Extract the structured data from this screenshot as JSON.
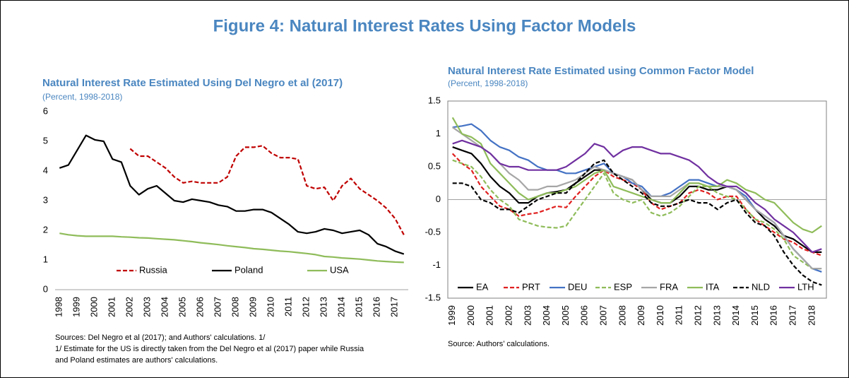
{
  "title": "Figure 4: Natural Interest Rates Using Factor Models",
  "chart_data": [
    {
      "type": "line",
      "title": "Natural Interest Rate Estimated Using Del Negro et al (2017)",
      "subtitle": "(Percent, 1998-2018)",
      "categories": [
        "1998",
        null,
        "1999",
        null,
        "2000",
        null,
        "2001",
        null,
        "2002",
        null,
        "2003",
        null,
        "2004",
        null,
        "2005",
        null,
        "2006",
        null,
        "2007",
        null,
        "2008",
        null,
        "2009",
        null,
        "2010",
        null,
        "2011",
        null,
        "2012",
        null,
        "2013",
        null,
        "2014",
        null,
        "2015",
        null,
        "2016",
        null,
        "2017",
        null
      ],
      "ylim": [
        0,
        6
      ],
      "yticks": [
        0,
        1,
        2,
        3,
        4,
        5,
        6
      ],
      "grid": false,
      "legend": "lower center",
      "series": [
        {
          "name": "Russia",
          "color": "#c00000",
          "dashed": true,
          "values": [
            null,
            null,
            null,
            null,
            null,
            null,
            null,
            null,
            4.75,
            4.5,
            4.5,
            4.3,
            4.1,
            3.8,
            3.6,
            3.65,
            3.6,
            3.6,
            3.6,
            3.8,
            4.5,
            4.8,
            4.8,
            4.85,
            4.6,
            4.45,
            4.45,
            4.4,
            3.5,
            3.4,
            3.45,
            3.0,
            3.5,
            3.75,
            3.4,
            3.2,
            3.0,
            2.75,
            2.4,
            1.85
          ]
        },
        {
          "name": "Poland",
          "color": "#000000",
          "dashed": false,
          "values": [
            4.1,
            4.2,
            4.7,
            5.2,
            5.05,
            5.0,
            4.4,
            4.3,
            3.5,
            3.2,
            3.4,
            3.5,
            3.25,
            3.0,
            2.95,
            3.05,
            3.0,
            2.95,
            2.85,
            2.8,
            2.65,
            2.65,
            2.7,
            2.7,
            2.6,
            2.4,
            2.2,
            1.95,
            1.9,
            1.95,
            2.05,
            2.0,
            1.9,
            1.95,
            2.0,
            1.85,
            1.55,
            1.45,
            1.3,
            1.2
          ]
        },
        {
          "name": "USA",
          "color": "#8fbc5a",
          "dashed": false,
          "values": [
            1.9,
            1.85,
            1.82,
            1.8,
            1.8,
            1.8,
            1.8,
            1.78,
            1.77,
            1.75,
            1.74,
            1.72,
            1.7,
            1.68,
            1.65,
            1.62,
            1.58,
            1.55,
            1.52,
            1.48,
            1.45,
            1.42,
            1.38,
            1.36,
            1.33,
            1.3,
            1.28,
            1.25,
            1.22,
            1.18,
            1.12,
            1.1,
            1.07,
            1.05,
            1.03,
            1.0,
            0.97,
            0.95,
            0.93,
            0.92
          ]
        }
      ],
      "notes": [
        "Sources: Del Negro et al (2017); and Authors' calculations. 1/",
        "1/ Estimate for the US is directly taken from the Del Negro et al (2017) paper while Russia",
        "and Poland estimates are authors' calculations."
      ]
    },
    {
      "type": "line",
      "title": "Natural Interest Rate Estimated using Common Factor Model",
      "subtitle": "(Percent, 1998-2018)",
      "categories": [
        "1999",
        null,
        "2000",
        null,
        "2001",
        null,
        "2002",
        null,
        "2003",
        null,
        "2004",
        null,
        "2005",
        null,
        "2006",
        null,
        "2007",
        null,
        "2008",
        null,
        "2009",
        null,
        "2010",
        null,
        "2011",
        null,
        "2012",
        null,
        "2013",
        null,
        "2014",
        null,
        "2015",
        null,
        "2016",
        null,
        "2017",
        null,
        "2018",
        null
      ],
      "ylim": [
        -1.5,
        1.5
      ],
      "yticks": [
        -1.5,
        -1,
        -0.5,
        0,
        0.5,
        1,
        1.5
      ],
      "grid": false,
      "legend": "lower left",
      "series": [
        {
          "name": "EA",
          "color": "#000000",
          "dashed": false,
          "values": [
            0.8,
            0.75,
            0.7,
            0.55,
            0.35,
            0.2,
            0.1,
            -0.05,
            -0.05,
            0.05,
            0.1,
            0.12,
            0.15,
            0.25,
            0.35,
            0.45,
            0.45,
            0.4,
            0.35,
            0.3,
            0.15,
            0.0,
            -0.05,
            -0.05,
            0.05,
            0.2,
            0.2,
            0.15,
            0.15,
            0.2,
            0.15,
            0.0,
            -0.15,
            -0.3,
            -0.4,
            -0.55,
            -0.6,
            -0.7,
            -0.8,
            -0.8
          ]
        },
        {
          "name": "PRT",
          "color": "#e02020",
          "dashed": true,
          "values": [
            0.7,
            0.55,
            0.45,
            0.2,
            0.05,
            -0.1,
            -0.15,
            -0.25,
            -0.22,
            -0.2,
            -0.15,
            -0.1,
            -0.12,
            0.05,
            0.2,
            0.35,
            0.45,
            0.35,
            0.3,
            0.25,
            0.15,
            -0.05,
            -0.15,
            -0.1,
            -0.05,
            0.1,
            0.15,
            0.1,
            0.0,
            0.05,
            0.05,
            -0.15,
            -0.3,
            -0.4,
            -0.5,
            -0.6,
            -0.65,
            -0.75,
            -0.8,
            -0.85
          ]
        },
        {
          "name": "DEU",
          "color": "#4472c4",
          "dashed": false,
          "values": [
            1.1,
            1.12,
            1.15,
            1.05,
            0.9,
            0.8,
            0.75,
            0.65,
            0.6,
            0.5,
            0.45,
            0.45,
            0.4,
            0.4,
            0.45,
            0.5,
            0.55,
            0.4,
            0.35,
            0.25,
            0.2,
            0.05,
            0.05,
            0.1,
            0.2,
            0.3,
            0.3,
            0.25,
            0.2,
            0.2,
            0.15,
            0.05,
            -0.15,
            -0.25,
            -0.35,
            -0.55,
            -0.75,
            -0.9,
            -1.05,
            -1.1
          ]
        },
        {
          "name": "ESP",
          "color": "#8fbc5a",
          "dashed": true,
          "values": [
            0.6,
            0.55,
            0.5,
            0.35,
            0.15,
            0.0,
            -0.1,
            -0.3,
            -0.35,
            -0.4,
            -0.42,
            -0.43,
            -0.4,
            -0.2,
            0.0,
            0.2,
            0.4,
            0.1,
            0.0,
            -0.05,
            0.0,
            -0.2,
            -0.25,
            -0.2,
            -0.1,
            0.05,
            0.2,
            0.2,
            0.1,
            0.05,
            0.0,
            -0.15,
            -0.3,
            -0.35,
            -0.45,
            -0.6,
            -0.85,
            -0.95,
            -1.05,
            -1.05
          ]
        },
        {
          "name": "FRA",
          "color": "#a6a6a6",
          "dashed": false,
          "values": [
            1.1,
            1.0,
            0.9,
            0.8,
            0.7,
            0.55,
            0.4,
            0.3,
            0.15,
            0.15,
            0.2,
            0.2,
            0.25,
            0.3,
            0.4,
            0.5,
            0.45,
            0.4,
            0.35,
            0.3,
            0.15,
            0.05,
            0.05,
            0.05,
            0.15,
            0.25,
            0.25,
            0.2,
            0.2,
            0.2,
            0.15,
            0.0,
            -0.15,
            -0.25,
            -0.35,
            -0.55,
            -0.75,
            -0.9,
            -1.05,
            -1.05
          ]
        },
        {
          "name": "ITA",
          "color": "#8fbc5a",
          "dashed": false,
          "values": [
            1.25,
            1.0,
            0.95,
            0.85,
            0.55,
            0.4,
            0.25,
            0.1,
            0.0,
            0.05,
            0.1,
            0.1,
            0.15,
            0.2,
            0.3,
            0.4,
            0.45,
            0.2,
            0.15,
            0.1,
            0.05,
            0.0,
            -0.05,
            -0.05,
            0.1,
            0.25,
            0.25,
            0.2,
            0.2,
            0.3,
            0.25,
            0.15,
            0.1,
            0.0,
            -0.05,
            -0.2,
            -0.35,
            -0.45,
            -0.5,
            -0.4
          ]
        },
        {
          "name": "NLD",
          "color": "#000000",
          "dashed": true,
          "values": [
            0.25,
            0.25,
            0.2,
            0.0,
            -0.05,
            -0.15,
            -0.15,
            -0.2,
            -0.1,
            0.0,
            0.05,
            0.1,
            0.1,
            0.25,
            0.4,
            0.55,
            0.6,
            0.4,
            0.3,
            0.2,
            0.1,
            -0.05,
            -0.1,
            -0.1,
            -0.05,
            0.0,
            -0.05,
            -0.05,
            -0.15,
            -0.05,
            0.0,
            -0.2,
            -0.35,
            -0.4,
            -0.55,
            -0.8,
            -1.0,
            -1.15,
            -1.25,
            -1.3
          ]
        },
        {
          "name": "LTH",
          "color": "#7030a0",
          "dashed": false,
          "values": [
            0.85,
            0.9,
            0.85,
            0.8,
            0.7,
            0.55,
            0.5,
            0.5,
            0.45,
            0.45,
            0.45,
            0.45,
            0.5,
            0.6,
            0.7,
            0.85,
            0.8,
            0.65,
            0.75,
            0.8,
            0.8,
            0.75,
            0.7,
            0.7,
            0.65,
            0.6,
            0.5,
            0.35,
            0.25,
            0.2,
            0.2,
            0.1,
            -0.05,
            -0.15,
            -0.3,
            -0.4,
            -0.5,
            -0.65,
            -0.8,
            -0.75
          ]
        }
      ],
      "notes": [
        "Source: Authors’ calculations."
      ]
    }
  ]
}
